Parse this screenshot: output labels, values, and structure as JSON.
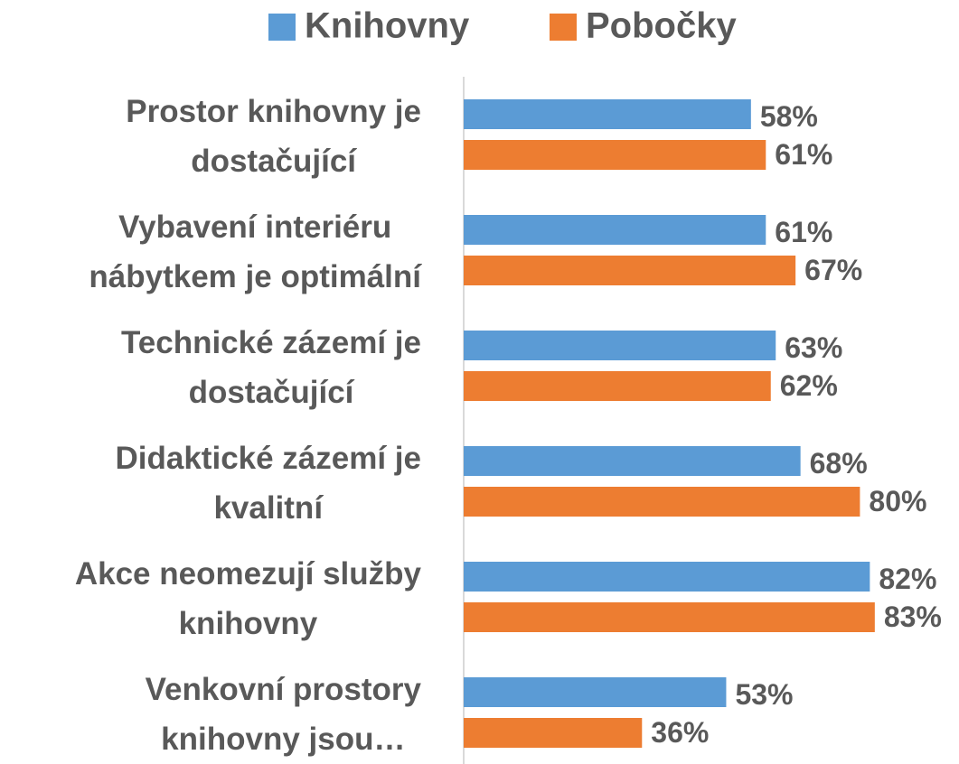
{
  "chart_data": {
    "type": "bar",
    "orientation": "horizontal",
    "categories": [
      "Prostor knihovny je\ndostačující",
      "Vybavení interiéru\nnábytkem je optimální",
      "Technické zázemí je\ndostačující",
      "Didaktické zázemí  je\nkvalitní",
      "Akce neomezují služby\nknihovny",
      "Venkovní prostory\nknihovny jsou…"
    ],
    "series": [
      {
        "name": "Knihovny",
        "color": "#5b9bd5",
        "values": [
          58,
          61,
          63,
          68,
          82,
          53
        ],
        "value_labels": [
          "58%",
          "61%",
          "63%",
          "68%",
          "82%",
          "53%"
        ]
      },
      {
        "name": "Pobočky",
        "color": "#ed7d31",
        "values": [
          61,
          67,
          62,
          80,
          83,
          36
        ],
        "value_labels": [
          "61%",
          "67%",
          "62%",
          "80%",
          "83%",
          "36%"
        ]
      }
    ],
    "xlim": [
      0,
      100
    ],
    "legend": "top"
  }
}
